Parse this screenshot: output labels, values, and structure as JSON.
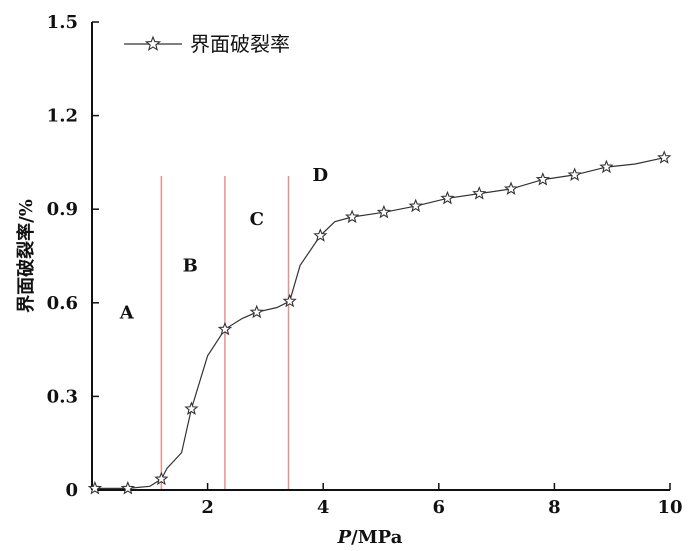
{
  "chart_data": {
    "type": "line",
    "xlabel_italic": "P",
    "xlabel_rest": "/MPa",
    "ylabel": "界面破裂率/%",
    "xlim": [
      0,
      10
    ],
    "ylim": [
      0,
      1.5
    ],
    "x_ticks": [
      2,
      4,
      6,
      8,
      10
    ],
    "y_ticks": [
      0,
      0.3,
      0.6,
      0.9,
      1.2,
      1.5
    ],
    "y_tick_labels": [
      "0",
      "0.3",
      "0.6",
      "0.9",
      "1.2",
      "1.5"
    ],
    "legend_position": "top-left",
    "series": [
      {
        "name": "界面破裂率",
        "color": "#333333",
        "marker": "star",
        "x": [
          0.05,
          0.62,
          1.2,
          1.72,
          2.3,
          2.85,
          3.42,
          3.95,
          4.5,
          5.05,
          5.6,
          6.15,
          6.7,
          7.25,
          7.8,
          8.35,
          8.9,
          9.9
        ],
        "y": [
          0.005,
          0.005,
          0.035,
          0.26,
          0.515,
          0.57,
          0.605,
          0.815,
          0.875,
          0.89,
          0.91,
          0.935,
          0.95,
          0.965,
          0.995,
          1.01,
          1.035,
          1.065
        ],
        "line_x": [
          0.05,
          0.62,
          1.0,
          1.2,
          1.3,
          1.55,
          1.72,
          2.0,
          2.3,
          2.6,
          2.85,
          3.2,
          3.42,
          3.6,
          3.95,
          4.2,
          4.5,
          5.05,
          5.6,
          6.15,
          6.7,
          7.25,
          7.8,
          8.35,
          8.9,
          9.4,
          9.9
        ],
        "line_y": [
          0.005,
          0.005,
          0.012,
          0.035,
          0.07,
          0.12,
          0.26,
          0.43,
          0.515,
          0.55,
          0.57,
          0.585,
          0.605,
          0.72,
          0.815,
          0.86,
          0.875,
          0.89,
          0.91,
          0.935,
          0.95,
          0.965,
          0.995,
          1.01,
          1.035,
          1.045,
          1.065
        ]
      }
    ],
    "boundaries": {
      "x": [
        1.2,
        2.3,
        3.4
      ],
      "color": "#e8908a"
    },
    "regions": [
      {
        "label": "A",
        "x": 0.6,
        "y": 0.55
      },
      {
        "label": "B",
        "x": 1.7,
        "y": 0.7
      },
      {
        "label": "C",
        "x": 2.85,
        "y": 0.85
      },
      {
        "label": "D",
        "x": 3.95,
        "y": 0.99
      }
    ]
  }
}
